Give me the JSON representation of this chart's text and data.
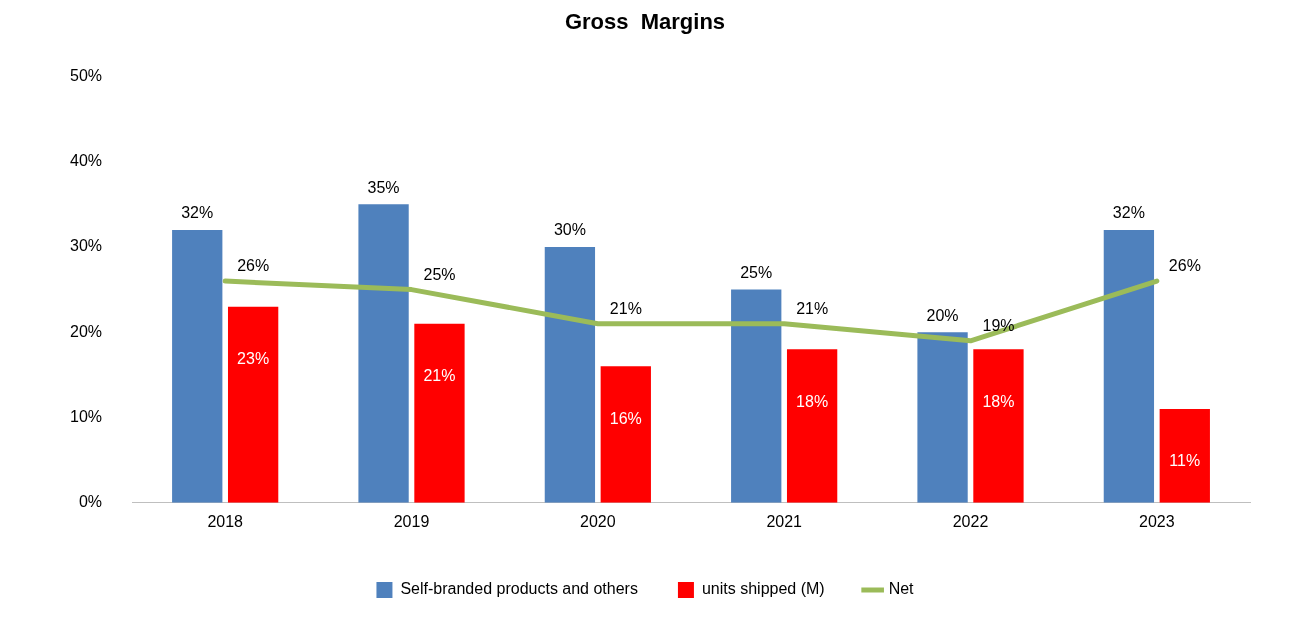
{
  "chart_data": {
    "type": "bar",
    "title": "Gross  Margins",
    "categories": [
      "2018",
      "2019",
      "2020",
      "2021",
      "2022",
      "2023"
    ],
    "series": [
      {
        "name": "Self-branded products and others",
        "color": "#4f81bd",
        "values": [
          32,
          35,
          30,
          25,
          20,
          32
        ],
        "value_labels": [
          "32%",
          "35%",
          "30%",
          "25%",
          "20%",
          "32%"
        ]
      },
      {
        "name": "units shipped (M)",
        "color": "#ff0000",
        "values": [
          23,
          21,
          16,
          18,
          18,
          11
        ],
        "value_labels": [
          "23%",
          "21%",
          "16%",
          "18%",
          "18%",
          "11%"
        ]
      },
      {
        "name": "Net",
        "type": "line",
        "color": "#9bbb59",
        "values": [
          26,
          25,
          21,
          21,
          19,
          26
        ],
        "value_labels": [
          "26%",
          "25%",
          "21%",
          "21%",
          "19%",
          "26%"
        ]
      }
    ],
    "ylim": [
      0,
      50
    ],
    "yticks": [
      {
        "value": 0,
        "label": "0%"
      },
      {
        "value": 10,
        "label": "10%"
      },
      {
        "value": 20,
        "label": "20%"
      },
      {
        "value": 30,
        "label": "30%"
      },
      {
        "value": 40,
        "label": "40%"
      },
      {
        "value": 50,
        "label": "50%"
      }
    ],
    "grid": false,
    "legend": "bottom",
    "marker": "none"
  }
}
